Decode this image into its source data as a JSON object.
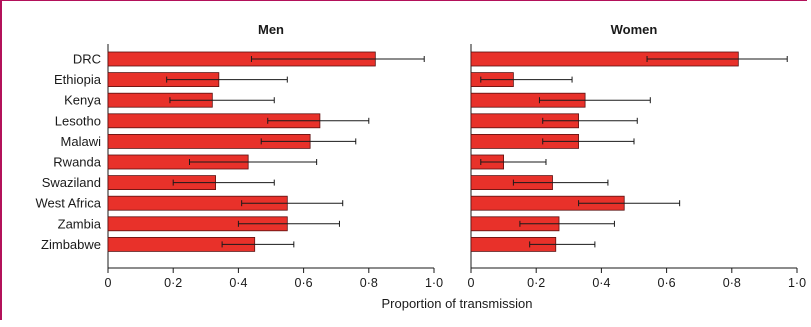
{
  "chart_data": {
    "type": "bar",
    "orientation": "horizontal",
    "categories": [
      "DRC",
      "Ethiopia",
      "Kenya",
      "Lesotho",
      "Malawi",
      "Rwanda",
      "Swaziland",
      "West Africa",
      "Zambia",
      "Zimbabwe"
    ],
    "xlabel": "Proportion of transmission",
    "xlim": [
      0,
      1
    ],
    "xticks": [
      0,
      0.2,
      0.4,
      0.6,
      0.8,
      1.0
    ],
    "xtick_labels": [
      "0",
      "0·2",
      "0·4",
      "0·6",
      "0·8",
      "1·0"
    ],
    "bar_color": "#e8312a",
    "grid": false,
    "panels": [
      {
        "title": "Men",
        "values": [
          0.82,
          0.34,
          0.32,
          0.65,
          0.62,
          0.43,
          0.33,
          0.55,
          0.55,
          0.45
        ],
        "ci_low": [
          0.44,
          0.18,
          0.19,
          0.49,
          0.47,
          0.25,
          0.2,
          0.41,
          0.4,
          0.35
        ],
        "ci_high": [
          0.97,
          0.55,
          0.51,
          0.8,
          0.76,
          0.64,
          0.51,
          0.72,
          0.71,
          0.57
        ]
      },
      {
        "title": "Women",
        "values": [
          0.82,
          0.13,
          0.35,
          0.33,
          0.33,
          0.1,
          0.25,
          0.47,
          0.27,
          0.26
        ],
        "ci_low": [
          0.54,
          0.03,
          0.21,
          0.22,
          0.22,
          0.03,
          0.13,
          0.33,
          0.15,
          0.18
        ],
        "ci_high": [
          0.97,
          0.31,
          0.55,
          0.51,
          0.5,
          0.23,
          0.42,
          0.64,
          0.44,
          0.38
        ]
      }
    ]
  }
}
